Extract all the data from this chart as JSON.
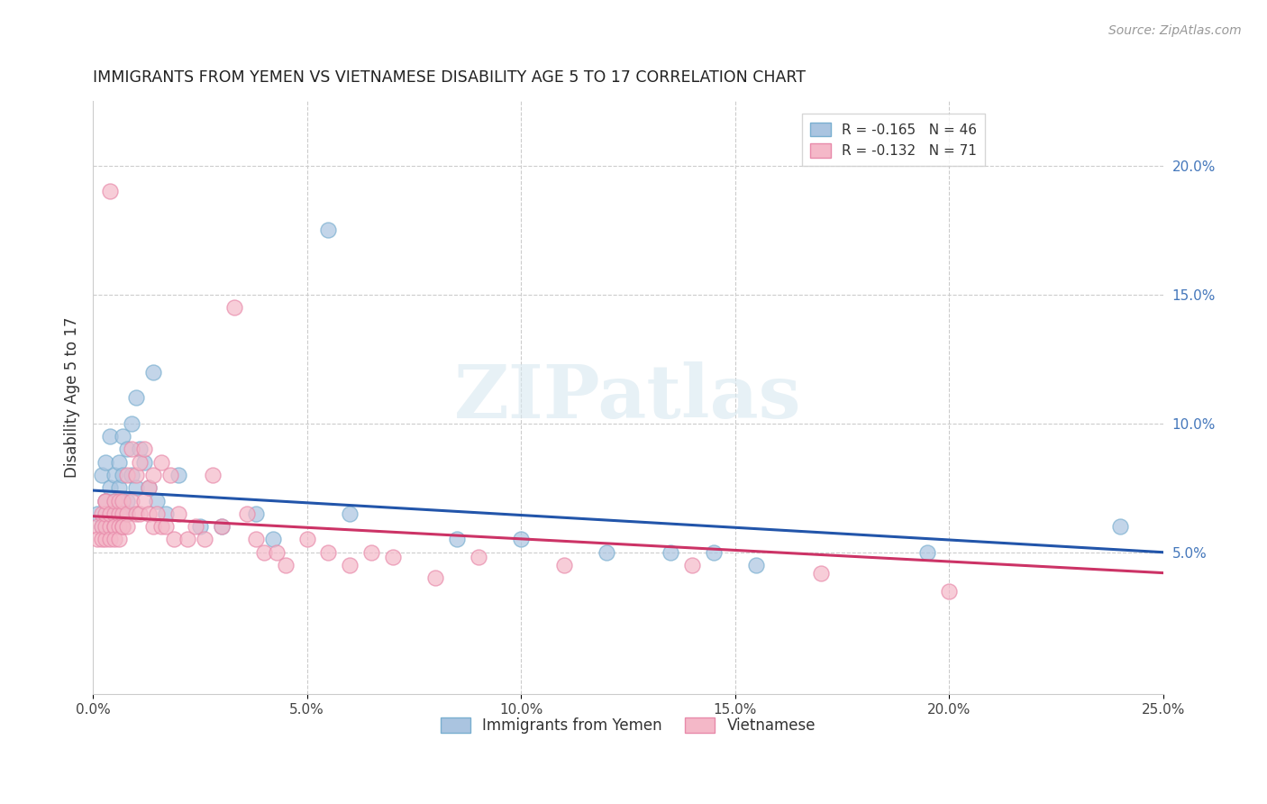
{
  "title": "IMMIGRANTS FROM YEMEN VS VIETNAMESE DISABILITY AGE 5 TO 17 CORRELATION CHART",
  "source": "Source: ZipAtlas.com",
  "xlabel": "",
  "ylabel": "Disability Age 5 to 17",
  "xlim": [
    0.0,
    0.25
  ],
  "ylim": [
    -0.005,
    0.225
  ],
  "xticks": [
    0.0,
    0.05,
    0.1,
    0.15,
    0.2,
    0.25
  ],
  "xtick_labels": [
    "0.0%",
    "5.0%",
    "10.0%",
    "15.0%",
    "20.0%",
    "25.0%"
  ],
  "yticks_right": [
    0.05,
    0.1,
    0.15,
    0.2
  ],
  "ytick_labels_right": [
    "5.0%",
    "10.0%",
    "15.0%",
    "20.0%"
  ],
  "watermark": "ZIPatlas",
  "legend_blue_r": "-0.165",
  "legend_blue_n": "46",
  "legend_pink_r": "-0.132",
  "legend_pink_n": "71",
  "blue_color": "#aac4e0",
  "pink_color": "#f4b8c8",
  "blue_edge_color": "#7aafd0",
  "pink_edge_color": "#e88aaa",
  "blue_line_color": "#2255aa",
  "pink_line_color": "#cc3366",
  "yemen_x": [
    0.001,
    0.002,
    0.002,
    0.003,
    0.003,
    0.004,
    0.004,
    0.004,
    0.005,
    0.005,
    0.005,
    0.006,
    0.006,
    0.006,
    0.007,
    0.007,
    0.007,
    0.007,
    0.008,
    0.008,
    0.008,
    0.009,
    0.009,
    0.01,
    0.01,
    0.011,
    0.012,
    0.013,
    0.014,
    0.015,
    0.017,
    0.02,
    0.025,
    0.03,
    0.038,
    0.042,
    0.055,
    0.06,
    0.085,
    0.1,
    0.12,
    0.135,
    0.145,
    0.155,
    0.195,
    0.24
  ],
  "yemen_y": [
    0.065,
    0.06,
    0.08,
    0.07,
    0.085,
    0.075,
    0.065,
    0.095,
    0.08,
    0.07,
    0.065,
    0.075,
    0.085,
    0.065,
    0.07,
    0.08,
    0.095,
    0.065,
    0.09,
    0.07,
    0.065,
    0.1,
    0.08,
    0.075,
    0.11,
    0.09,
    0.085,
    0.075,
    0.12,
    0.07,
    0.065,
    0.08,
    0.06,
    0.06,
    0.065,
    0.055,
    0.175,
    0.065,
    0.055,
    0.055,
    0.05,
    0.05,
    0.05,
    0.045,
    0.05,
    0.06
  ],
  "viet_x": [
    0.001,
    0.001,
    0.002,
    0.002,
    0.002,
    0.003,
    0.003,
    0.003,
    0.003,
    0.003,
    0.004,
    0.004,
    0.004,
    0.004,
    0.005,
    0.005,
    0.005,
    0.005,
    0.005,
    0.006,
    0.006,
    0.006,
    0.006,
    0.007,
    0.007,
    0.007,
    0.007,
    0.008,
    0.008,
    0.008,
    0.009,
    0.009,
    0.01,
    0.01,
    0.011,
    0.011,
    0.012,
    0.012,
    0.013,
    0.013,
    0.014,
    0.014,
    0.015,
    0.016,
    0.016,
    0.017,
    0.018,
    0.019,
    0.02,
    0.022,
    0.024,
    0.026,
    0.028,
    0.03,
    0.033,
    0.036,
    0.038,
    0.04,
    0.043,
    0.045,
    0.05,
    0.055,
    0.06,
    0.065,
    0.07,
    0.08,
    0.09,
    0.11,
    0.14,
    0.17,
    0.2
  ],
  "viet_y": [
    0.06,
    0.055,
    0.065,
    0.06,
    0.055,
    0.07,
    0.055,
    0.06,
    0.065,
    0.07,
    0.06,
    0.065,
    0.055,
    0.19,
    0.06,
    0.065,
    0.06,
    0.07,
    0.055,
    0.065,
    0.06,
    0.07,
    0.055,
    0.065,
    0.06,
    0.07,
    0.06,
    0.08,
    0.065,
    0.06,
    0.09,
    0.07,
    0.08,
    0.065,
    0.085,
    0.065,
    0.09,
    0.07,
    0.075,
    0.065,
    0.08,
    0.06,
    0.065,
    0.085,
    0.06,
    0.06,
    0.08,
    0.055,
    0.065,
    0.055,
    0.06,
    0.055,
    0.08,
    0.06,
    0.145,
    0.065,
    0.055,
    0.05,
    0.05,
    0.045,
    0.055,
    0.05,
    0.045,
    0.05,
    0.048,
    0.04,
    0.048,
    0.045,
    0.045,
    0.042,
    0.035
  ],
  "blue_line_x0": 0.0,
  "blue_line_x1": 0.25,
  "blue_line_y0": 0.074,
  "blue_line_y1": 0.05,
  "pink_line_x0": 0.0,
  "pink_line_x1": 0.25,
  "pink_line_y0": 0.064,
  "pink_line_y1": 0.042
}
